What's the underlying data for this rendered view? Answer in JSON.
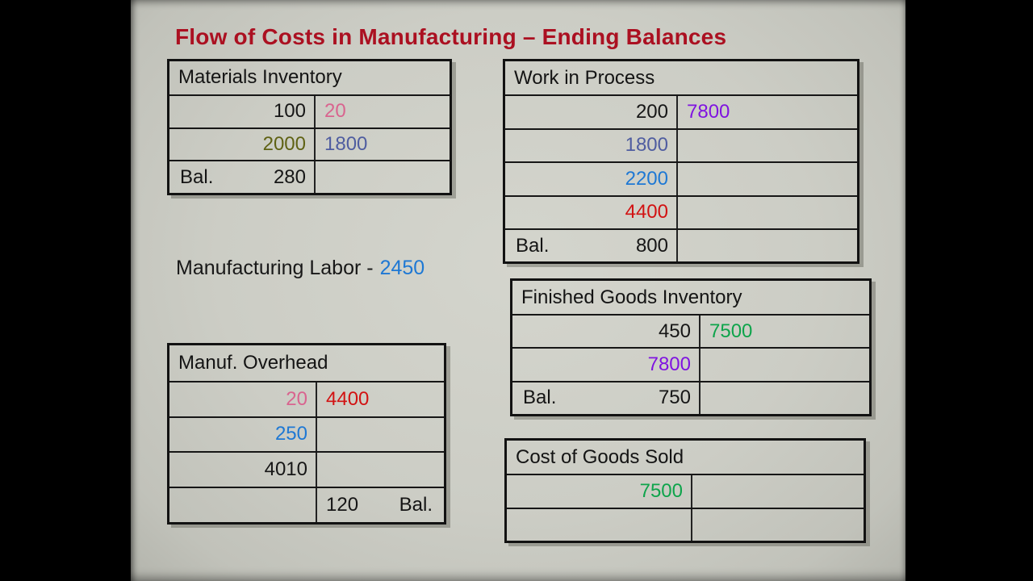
{
  "title": {
    "text": "Flow of Costs in Manufacturing – Ending Balances"
  },
  "labor": {
    "label": "Manufacturing Labor -",
    "value": "2450",
    "value_color": "blue"
  },
  "colors": {
    "title_red": "#ab1021",
    "black": "#161616",
    "pink": "#d9648f",
    "olive": "#5f6214",
    "slate": "#4f5da0",
    "purple": "#7f13e0",
    "blue": "#1e78d4",
    "red": "#d21212",
    "green": "#0ea44b"
  },
  "accounts": [
    {
      "key": "materials-inventory",
      "title": "Materials Inventory",
      "rows": [
        {
          "debit": {
            "value": "100",
            "color": "black"
          },
          "credit": {
            "value": "20",
            "color": "pink"
          }
        },
        {
          "debit": {
            "value": "2000",
            "color": "olive"
          },
          "credit": {
            "value": "1800",
            "color": "slate"
          }
        },
        {
          "debit": {
            "bal": "Bal.",
            "value": "280",
            "color": "black"
          },
          "credit": {}
        }
      ]
    },
    {
      "key": "work-in-process",
      "title": "Work in Process",
      "rows": [
        {
          "debit": {
            "value": "200",
            "color": "black"
          },
          "credit": {
            "value": "7800",
            "color": "purple"
          }
        },
        {
          "debit": {
            "value": "1800",
            "color": "slate"
          },
          "credit": {}
        },
        {
          "debit": {
            "value": "2200",
            "color": "blue"
          },
          "credit": {}
        },
        {
          "debit": {
            "value": "4400",
            "color": "red"
          },
          "credit": {}
        },
        {
          "debit": {
            "bal": "Bal.",
            "value": "800",
            "color": "black"
          },
          "credit": {}
        }
      ]
    },
    {
      "key": "manuf-overhead",
      "title": "Manuf. Overhead",
      "rows": [
        {
          "debit": {
            "value": "20",
            "color": "pink"
          },
          "credit": {
            "value": "4400",
            "color": "red"
          }
        },
        {
          "debit": {
            "value": "250",
            "color": "blue"
          },
          "credit": {}
        },
        {
          "debit": {
            "value": "4010",
            "color": "black"
          },
          "credit": {}
        },
        {
          "debit": {},
          "credit": {
            "value": "120",
            "color": "black",
            "bal": "Bal."
          }
        }
      ]
    },
    {
      "key": "finished-goods-inventory",
      "title": "Finished Goods Inventory",
      "rows": [
        {
          "debit": {
            "value": "450",
            "color": "black"
          },
          "credit": {
            "value": "7500",
            "color": "green"
          }
        },
        {
          "debit": {
            "value": "7800",
            "color": "purple"
          },
          "credit": {}
        },
        {
          "debit": {
            "bal": "Bal.",
            "value": "750",
            "color": "black"
          },
          "credit": {}
        }
      ]
    },
    {
      "key": "cost-of-goods-sold",
      "title": "Cost of Goods Sold",
      "rows": [
        {
          "debit": {
            "value": "7500",
            "color": "green"
          },
          "credit": {}
        },
        {
          "debit": {},
          "credit": {}
        }
      ]
    }
  ]
}
